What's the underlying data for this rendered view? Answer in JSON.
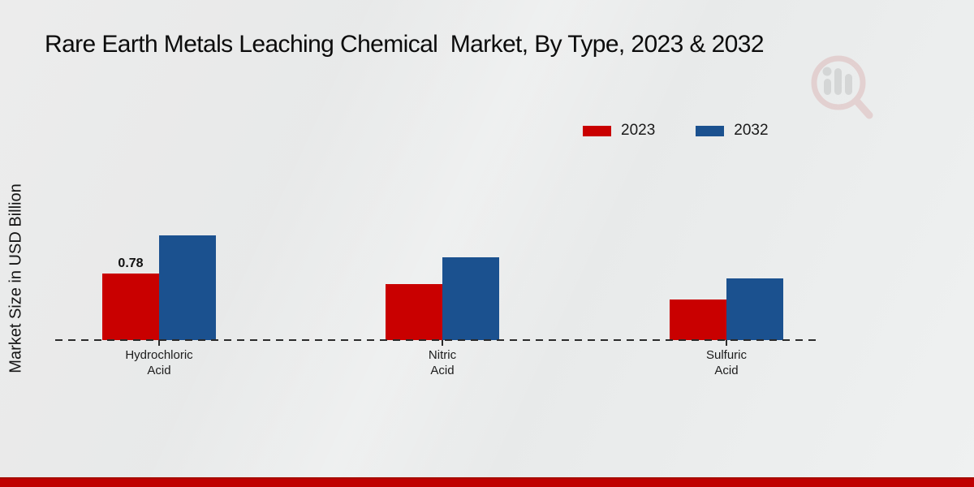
{
  "page": {
    "title": "Rare Earth Metals Leaching Chemical  Market, By Type, 2023 & 2032",
    "y_axis_label": "Market Size in USD Billion"
  },
  "chart_data": {
    "type": "bar",
    "title": "Rare Earth Metals Leaching Chemical Market, By Type, 2023 & 2032",
    "xlabel": "",
    "ylabel": "Market Size in USD Billion",
    "unit": "USD Billion",
    "grid": false,
    "legend_position": "top-right",
    "categories": [
      "Hydrochloric Acid",
      "Nitric Acid",
      "Sulfuric Acid"
    ],
    "series": [
      {
        "name": "2023",
        "color": "#c90000",
        "values": [
          0.78,
          0.66,
          0.48
        ],
        "value_labels": [
          "0.78",
          "",
          ""
        ]
      },
      {
        "name": "2032",
        "color": "#1b518f",
        "values": [
          1.23,
          0.97,
          0.72
        ],
        "value_labels": [
          "",
          "",
          ""
        ]
      }
    ],
    "baseline_value": 0,
    "annotations": [
      "0.78"
    ]
  },
  "colors": {
    "bar_2023": "#c90000",
    "bar_2032": "#1b518f",
    "footer_bar": "#c00000",
    "baseline": "#2b2b2b"
  },
  "watermark": {
    "name": "market-research-magnifier-logo"
  }
}
